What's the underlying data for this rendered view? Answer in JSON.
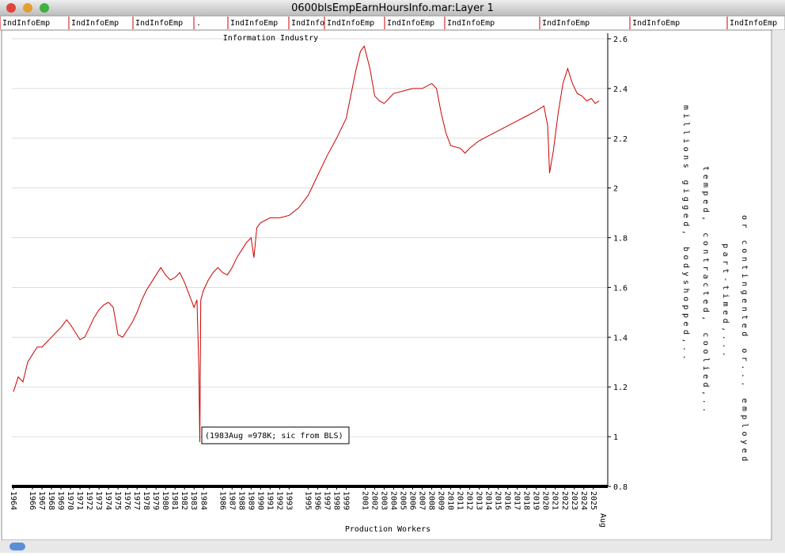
{
  "window": {
    "title": "0600blsEmpEarnHoursInfo.mar:Layer 1",
    "columns": [
      "IndInfoEmp",
      "IndInfoEmp",
      "IndInfoEmp",
      ".",
      "IndInfoEmp",
      "IndInfo",
      "IndInfoEmp",
      "IndInfoEmp",
      "IndInfoEmp",
      "IndInfoEmp",
      "IndInfoEmp",
      "IndInfoEmp"
    ]
  },
  "chart_data": {
    "type": "line",
    "title": "Information Industry",
    "x_label": "Production Workers",
    "x": [
      1964.0,
      1964.5,
      1965.0,
      1965.5,
      1966.0,
      1966.5,
      1967.0,
      1967.5,
      1968.0,
      1968.5,
      1969.0,
      1969.6,
      1970.0,
      1970.5,
      1971.0,
      1971.5,
      1972.0,
      1972.5,
      1973.0,
      1973.5,
      1974.0,
      1974.5,
      1975.0,
      1975.5,
      1976.0,
      1976.5,
      1977.0,
      1977.5,
      1978.0,
      1978.5,
      1979.0,
      1979.5,
      1980.0,
      1980.5,
      1981.0,
      1981.5,
      1982.0,
      1982.5,
      1983.0,
      1983.3,
      1983.5,
      1983.6,
      1983.7,
      1984.0,
      1984.5,
      1985.0,
      1985.5,
      1986.0,
      1986.5,
      1987.0,
      1987.5,
      1988.0,
      1988.5,
      1989.0,
      1989.3,
      1989.6,
      1990.0,
      1991.0,
      1992.0,
      1993.0,
      1994.0,
      1995.0,
      1996.0,
      1997.0,
      1998.0,
      1999.0,
      2000.0,
      2000.5,
      2000.9,
      2001.5,
      2002.0,
      2002.5,
      2003.0,
      2003.5,
      2004.0,
      2005.0,
      2006.0,
      2007.0,
      2008.0,
      2008.5,
      2009.0,
      2009.5,
      2010.0,
      2011.0,
      2011.5,
      2012.0,
      2013.0,
      2014.0,
      2015.0,
      2016.0,
      2017.0,
      2018.0,
      2019.0,
      2019.8,
      2020.2,
      2020.4,
      2020.8,
      2021.3,
      2021.8,
      2022.3,
      2022.8,
      2023.3,
      2023.8,
      2024.3,
      2024.8,
      2025.2,
      2025.6
    ],
    "series": [
      {
        "name": "IndInfoEmp",
        "color": "#cc0000",
        "values": [
          1.18,
          1.24,
          1.22,
          1.3,
          1.33,
          1.36,
          1.36,
          1.38,
          1.4,
          1.42,
          1.44,
          1.47,
          1.45,
          1.42,
          1.39,
          1.4,
          1.44,
          1.48,
          1.51,
          1.53,
          1.54,
          1.52,
          1.41,
          1.4,
          1.43,
          1.46,
          1.5,
          1.55,
          1.59,
          1.62,
          1.65,
          1.68,
          1.65,
          1.63,
          1.64,
          1.66,
          1.62,
          1.57,
          1.52,
          1.55,
          1.28,
          0.978,
          1.55,
          1.59,
          1.63,
          1.66,
          1.68,
          1.66,
          1.65,
          1.68,
          1.72,
          1.75,
          1.78,
          1.8,
          1.72,
          1.84,
          1.86,
          1.88,
          1.88,
          1.89,
          1.92,
          1.97,
          2.05,
          2.13,
          2.2,
          2.28,
          2.47,
          2.55,
          2.57,
          2.48,
          2.37,
          2.35,
          2.34,
          2.36,
          2.38,
          2.39,
          2.4,
          2.4,
          2.42,
          2.4,
          2.3,
          2.22,
          2.17,
          2.16,
          2.14,
          2.16,
          2.19,
          2.21,
          2.23,
          2.25,
          2.27,
          2.29,
          2.31,
          2.33,
          2.25,
          2.06,
          2.15,
          2.3,
          2.42,
          2.48,
          2.42,
          2.38,
          2.37,
          2.35,
          2.36,
          2.34,
          2.35
        ]
      }
    ],
    "xlim": [
      1964,
      2025.6
    ],
    "xticks": [
      1964,
      1966,
      1967,
      1968,
      1969,
      1970,
      1971,
      1972,
      1973,
      1974,
      1975,
      1976,
      1977,
      1978,
      1979,
      1980,
      1981,
      1982,
      1983,
      1984,
      1986,
      1987,
      1988,
      1989,
      1990,
      1991,
      1992,
      1993,
      1995,
      1996,
      1997,
      1998,
      1999,
      2001,
      2002,
      2003,
      2004,
      2005,
      2006,
      2007,
      2008,
      2009,
      2010,
      2011,
      2012,
      2013,
      2014,
      2015,
      2016,
      2017,
      2018,
      2019,
      2020,
      2021,
      2022,
      2023,
      2024,
      2025
    ],
    "x_end_label": "Aug",
    "ylim": [
      0.8,
      2.6
    ],
    "yticks": [
      0.8,
      1,
      1.2,
      1.4,
      1.6,
      1.8,
      2,
      2.2,
      2.4,
      2.6
    ],
    "grid": true,
    "annotation": "(1983Aug =978K; sic from BLS)",
    "side_notes": [
      "millions gigged, bodyshopped,..",
      "temped, contracted, coolied,..",
      "part-timed,...",
      "or contingented or... employed"
    ]
  }
}
